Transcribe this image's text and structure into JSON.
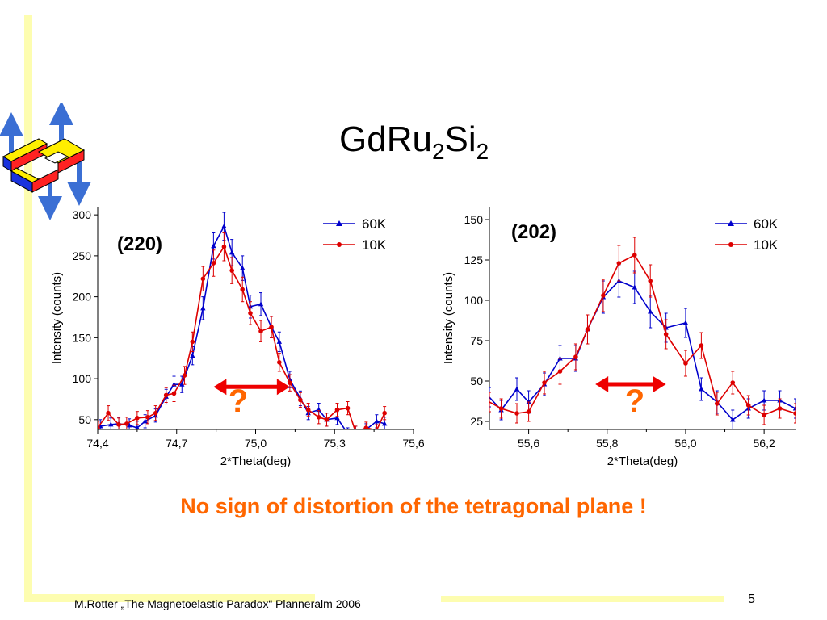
{
  "slide": {
    "title": {
      "main": "GdRu",
      "sub1": "2",
      "mid": "Si",
      "sub2": "2"
    },
    "conclusion": "No sign of distortion of the tetragonal plane !",
    "footer": "M.Rotter „The Magnetoelastic Paradox“ Planneralm 2006",
    "page_number": "5",
    "logo_icon": "spin-structure-logo-icon",
    "accent_color": "#ff6600",
    "decor_color": "#fdfdb0"
  },
  "chart_data": [
    {
      "type": "line",
      "annotation": "(220)",
      "question_mark": "?",
      "xlabel": "2*Theta(deg)",
      "ylabel": "Intensity (counts)",
      "xlim": [
        74.4,
        75.6
      ],
      "ylim": [
        38,
        310
      ],
      "xticks": [
        74.4,
        74.7,
        75.0,
        75.3,
        75.6
      ],
      "xtick_labels": [
        "74,4",
        "74,7",
        "75,0",
        "75,3",
        "75,6"
      ],
      "yticks": [
        50,
        100,
        150,
        200,
        250,
        300
      ],
      "ytick_labels": [
        "50",
        "100",
        "150",
        "200",
        "250",
        "300"
      ],
      "legend_position": "top-right",
      "grid": false,
      "arrow": {
        "from": 74.84,
        "to": 75.13,
        "y": 90
      },
      "series": [
        {
          "name": "60K",
          "color": "#0000cc",
          "marker": "triangle",
          "points": [
            [
              74.41,
              42
            ],
            [
              74.45,
              44
            ],
            [
              74.48,
              45
            ],
            [
              74.52,
              43
            ],
            [
              74.55,
              40
            ],
            [
              74.58,
              48
            ],
            [
              74.62,
              55
            ],
            [
              74.66,
              78
            ],
            [
              74.69,
              93
            ],
            [
              74.72,
              93
            ],
            [
              74.76,
              128
            ],
            [
              74.8,
              186
            ],
            [
              74.84,
              262
            ],
            [
              74.88,
              286
            ],
            [
              74.91,
              254
            ],
            [
              74.95,
              235
            ],
            [
              74.98,
              188
            ],
            [
              75.02,
              191
            ],
            [
              75.06,
              163
            ],
            [
              75.09,
              145
            ],
            [
              75.13,
              99
            ],
            [
              75.17,
              76
            ],
            [
              75.2,
              58
            ],
            [
              75.24,
              62
            ],
            [
              75.27,
              50
            ],
            [
              75.31,
              52
            ],
            [
              75.35,
              33
            ],
            [
              75.38,
              35
            ],
            [
              75.42,
              38
            ],
            [
              75.46,
              48
            ],
            [
              75.49,
              45
            ]
          ],
          "errors": [
            8,
            8,
            8,
            8,
            8,
            8,
            8,
            9,
            10,
            10,
            11,
            14,
            16,
            17,
            16,
            15,
            14,
            14,
            13,
            12,
            10,
            9,
            8,
            8,
            8,
            8,
            7,
            7,
            7,
            8,
            8
          ]
        },
        {
          "name": "10K",
          "color": "#dd0000",
          "marker": "circle",
          "points": [
            [
              74.4,
              40
            ],
            [
              74.44,
              58
            ],
            [
              74.48,
              44
            ],
            [
              74.51,
              45
            ],
            [
              74.55,
              52
            ],
            [
              74.59,
              53
            ],
            [
              74.62,
              58
            ],
            [
              74.66,
              80
            ],
            [
              74.69,
              82
            ],
            [
              74.73,
              104
            ],
            [
              74.76,
              145
            ],
            [
              74.8,
              222
            ],
            [
              74.84,
              241
            ],
            [
              74.88,
              261
            ],
            [
              74.91,
              232
            ],
            [
              74.95,
              209
            ],
            [
              74.98,
              180
            ],
            [
              75.02,
              158
            ],
            [
              75.06,
              163
            ],
            [
              75.09,
              120
            ],
            [
              75.13,
              95
            ],
            [
              75.17,
              74
            ],
            [
              75.2,
              62
            ],
            [
              75.24,
              53
            ],
            [
              75.27,
              50
            ],
            [
              75.31,
              62
            ],
            [
              75.35,
              64
            ],
            [
              75.38,
              35
            ],
            [
              75.42,
              40
            ],
            [
              75.46,
              37
            ],
            [
              75.49,
              58
            ]
          ],
          "errors": [
            8,
            9,
            8,
            8,
            8,
            8,
            9,
            9,
            10,
            11,
            12,
            15,
            16,
            17,
            16,
            15,
            14,
            13,
            13,
            11,
            10,
            9,
            8,
            8,
            8,
            8,
            8,
            7,
            7,
            7,
            8
          ]
        }
      ]
    },
    {
      "type": "line",
      "annotation": "(202)",
      "question_mark": "?",
      "xlabel": "2*Theta(deg)",
      "ylabel": "Intensity (counts)",
      "xlim": [
        55.5,
        56.28
      ],
      "ylim": [
        20,
        158
      ],
      "xticks": [
        55.6,
        55.8,
        56.0,
        56.2
      ],
      "xtick_labels": [
        "55,6",
        "55,8",
        "56,0",
        "56,2"
      ],
      "yticks": [
        25,
        50,
        75,
        100,
        125,
        150
      ],
      "ytick_labels": [
        "25",
        "50",
        "75",
        "100",
        "125",
        "150"
      ],
      "legend_position": "top-right",
      "grid": false,
      "arrow": {
        "from": 55.77,
        "to": 55.95,
        "y": 48
      },
      "series": [
        {
          "name": "60K",
          "color": "#0000cc",
          "marker": "triangle",
          "points": [
            [
              55.5,
              40
            ],
            [
              55.53,
              32
            ],
            [
              55.57,
              45
            ],
            [
              55.6,
              37
            ],
            [
              55.64,
              48
            ],
            [
              55.68,
              64
            ],
            [
              55.72,
              64
            ],
            [
              55.75,
              82
            ],
            [
              55.79,
              102
            ],
            [
              55.83,
              112
            ],
            [
              55.87,
              108
            ],
            [
              55.91,
              93
            ],
            [
              55.95,
              83
            ],
            [
              56.0,
              86
            ],
            [
              56.04,
              45
            ],
            [
              56.08,
              37
            ],
            [
              56.12,
              26
            ],
            [
              56.16,
              33
            ],
            [
              56.2,
              38
            ],
            [
              56.24,
              38
            ],
            [
              56.28,
              33
            ]
          ],
          "errors": [
            6,
            6,
            7,
            7,
            7,
            8,
            8,
            9,
            10,
            10,
            10,
            10,
            9,
            9,
            7,
            7,
            6,
            6,
            6,
            6,
            6
          ],
          "first_marker": 1
        },
        {
          "name": "10K",
          "color": "#dd0000",
          "marker": "circle",
          "points": [
            [
              55.5,
              37
            ],
            [
              55.53,
              33
            ],
            [
              55.57,
              30
            ],
            [
              55.6,
              31
            ],
            [
              55.64,
              49
            ],
            [
              55.68,
              56
            ],
            [
              55.72,
              65
            ],
            [
              55.75,
              82
            ],
            [
              55.79,
              103
            ],
            [
              55.83,
              123
            ],
            [
              55.87,
              128
            ],
            [
              55.91,
              112
            ],
            [
              55.95,
              79
            ],
            [
              56.0,
              61
            ],
            [
              56.04,
              72
            ],
            [
              56.08,
              36
            ],
            [
              56.12,
              49
            ],
            [
              56.16,
              35
            ],
            [
              56.2,
              29
            ],
            [
              56.24,
              33
            ],
            [
              56.28,
              30
            ]
          ],
          "errors": [
            6,
            6,
            6,
            6,
            7,
            8,
            8,
            9,
            10,
            11,
            11,
            10,
            9,
            8,
            8,
            7,
            7,
            6,
            6,
            6,
            6
          ],
          "first_marker": 1
        }
      ]
    }
  ]
}
